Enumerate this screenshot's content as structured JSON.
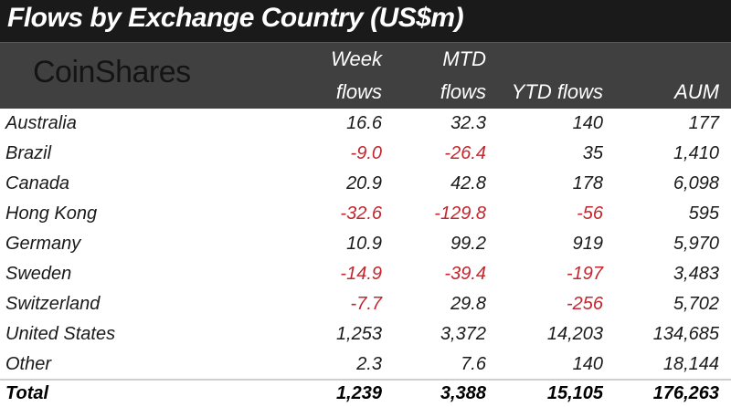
{
  "title": "Flows by Exchange Country (US$m)",
  "logo_text": "CoinShares",
  "colors": {
    "negative": "#c4262e",
    "header_bg": "#404040",
    "title_bg": "#1a1a1a"
  },
  "columns": {
    "week": [
      "Week",
      "flows"
    ],
    "mtd": [
      "MTD",
      "flows"
    ],
    "ytd": "YTD flows",
    "aum": "AUM"
  },
  "chart_data": {
    "type": "table",
    "title": "Flows by Exchange Country (US$m)",
    "columns": [
      "Week flows",
      "MTD flows",
      "YTD flows",
      "AUM"
    ],
    "rows": [
      {
        "country": "Australia",
        "week": "16.6",
        "mtd": "32.3",
        "ytd": "140",
        "aum": "177"
      },
      {
        "country": "Brazil",
        "week": "-9.0",
        "mtd": "-26.4",
        "ytd": "35",
        "aum": "1,410"
      },
      {
        "country": "Canada",
        "week": "20.9",
        "mtd": "42.8",
        "ytd": "178",
        "aum": "6,098"
      },
      {
        "country": "Hong Kong",
        "week": "-32.6",
        "mtd": "-129.8",
        "ytd": "-56",
        "aum": "595"
      },
      {
        "country": "Germany",
        "week": "10.9",
        "mtd": "99.2",
        "ytd": "919",
        "aum": "5,970"
      },
      {
        "country": "Sweden",
        "week": "-14.9",
        "mtd": "-39.4",
        "ytd": "-197",
        "aum": "3,483"
      },
      {
        "country": "Switzerland",
        "week": "-7.7",
        "mtd": "29.8",
        "ytd": "-256",
        "aum": "5,702"
      },
      {
        "country": "United States",
        "week": "1,253",
        "mtd": "3,372",
        "ytd": "14,203",
        "aum": "134,685"
      },
      {
        "country": "Other",
        "week": "2.3",
        "mtd": "7.6",
        "ytd": "140",
        "aum": "18,144"
      }
    ],
    "total": {
      "country": "Total",
      "week": "1,239",
      "mtd": "3,388",
      "ytd": "15,105",
      "aum": "176,263"
    }
  }
}
